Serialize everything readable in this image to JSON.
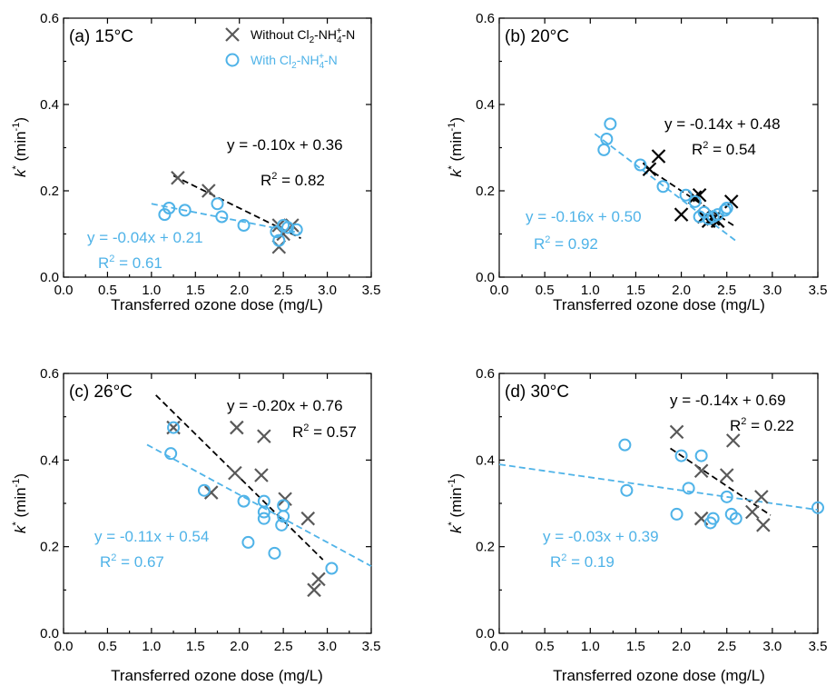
{
  "colors": {
    "without": "#595959",
    "without_dark": "#000000",
    "with": "#4fb3e8"
  },
  "legend": {
    "without_label": "Without Cl₂-NH₄⁺-N",
    "with_label": "With Cl₂-NH₄⁺-N"
  },
  "chart_data": [
    {
      "type": "scatter",
      "panel_label": "(a) 15°C",
      "xlabel": "Transferred ozone dose (mg/L)",
      "ylabel": "k* (min⁻¹)",
      "xlim": [
        0,
        3.5
      ],
      "ylim": [
        0,
        0.6
      ],
      "xticks": [
        "0.0",
        "0.5",
        "1.0",
        "1.5",
        "2.0",
        "2.5",
        "3.0",
        "3.5"
      ],
      "yticks": [
        "0.0",
        "0.2",
        "0.4",
        "0.6"
      ],
      "legend": "top-center",
      "series": [
        {
          "name": "Without Cl₂-NH₄⁺-N",
          "marker": "x",
          "points": [
            [
              1.3,
              0.23
            ],
            [
              1.65,
              0.2
            ],
            [
              2.45,
              0.12
            ],
            [
              2.5,
              0.1
            ],
            [
              2.45,
              0.07
            ],
            [
              2.6,
              0.12
            ]
          ]
        },
        {
          "name": "With Cl₂-NH₄⁺-N",
          "marker": "o",
          "points": [
            [
              1.15,
              0.145
            ],
            [
              1.2,
              0.16
            ],
            [
              1.38,
              0.155
            ],
            [
              1.75,
              0.17
            ],
            [
              1.8,
              0.14
            ],
            [
              2.05,
              0.12
            ],
            [
              2.42,
              0.105
            ],
            [
              2.45,
              0.085
            ],
            [
              2.5,
              0.12
            ],
            [
              2.55,
              0.115
            ],
            [
              2.65,
              0.11
            ]
          ]
        }
      ],
      "fits": [
        {
          "series": "without",
          "x": [
            1.25,
            2.7
          ],
          "eq": "y = -0.10x + 0.36",
          "r2": "R² = 0.82"
        },
        {
          "series": "with",
          "x": [
            1.0,
            2.7
          ],
          "eq": "y = -0.04x + 0.21",
          "r2": "R² = 0.61"
        }
      ]
    },
    {
      "type": "scatter",
      "panel_label": "(b) 20°C",
      "xlabel": "Transferred ozone dose (mg/L)",
      "ylabel": "k* (min⁻¹)",
      "xlim": [
        0,
        3.5
      ],
      "ylim": [
        0,
        0.6
      ],
      "xticks": [
        "0.0",
        "0.5",
        "1.0",
        "1.5",
        "2.0",
        "2.5",
        "3.0",
        "3.5"
      ],
      "yticks": [
        "0.0",
        "0.2",
        "0.4",
        "0.6"
      ],
      "series": [
        {
          "name": "Without Cl₂-NH₄⁺-N",
          "marker": "x",
          "points": [
            [
              1.65,
              0.25
            ],
            [
              1.75,
              0.28
            ],
            [
              2.0,
              0.145
            ],
            [
              2.15,
              0.185
            ],
            [
              2.2,
              0.19
            ],
            [
              2.25,
              0.14
            ],
            [
              2.3,
              0.13
            ],
            [
              2.35,
              0.135
            ],
            [
              2.4,
              0.13
            ],
            [
              2.55,
              0.175
            ]
          ]
        },
        {
          "name": "With Cl₂-NH₄⁺-N",
          "marker": "o",
          "points": [
            [
              1.15,
              0.295
            ],
            [
              1.18,
              0.32
            ],
            [
              1.22,
              0.355
            ],
            [
              1.55,
              0.26
            ],
            [
              1.8,
              0.21
            ],
            [
              2.05,
              0.19
            ],
            [
              2.15,
              0.175
            ],
            [
              2.2,
              0.14
            ],
            [
              2.25,
              0.15
            ],
            [
              2.3,
              0.135
            ],
            [
              2.35,
              0.14
            ],
            [
              2.4,
              0.145
            ],
            [
              2.48,
              0.155
            ],
            [
              2.5,
              0.16
            ]
          ]
        }
      ],
      "fits": [
        {
          "series": "without",
          "x": [
            1.6,
            2.6
          ],
          "eq": "y = -0.14x + 0.48",
          "r2": "R² = 0.54"
        },
        {
          "series": "with",
          "x": [
            1.05,
            2.6
          ],
          "eq": "y = -0.16x + 0.50",
          "r2": "R² = 0.92"
        }
      ]
    },
    {
      "type": "scatter",
      "panel_label": "(c) 26°C",
      "xlabel": "Transferred ozone dose (mg/L)",
      "ylabel": "k* (min⁻¹)",
      "xlim": [
        0,
        3.5
      ],
      "ylim": [
        0,
        0.6
      ],
      "xticks": [
        "0.0",
        "0.5",
        "1.0",
        "1.5",
        "2.0",
        "2.5",
        "3.0",
        "3.5"
      ],
      "yticks": [
        "0.0",
        "0.2",
        "0.4",
        "0.6"
      ],
      "series": [
        {
          "name": "Without Cl₂-NH₄⁺-N",
          "marker": "x",
          "points": [
            [
              1.25,
              0.475
            ],
            [
              1.68,
              0.325
            ],
            [
              1.95,
              0.37
            ],
            [
              1.97,
              0.475
            ],
            [
              2.25,
              0.365
            ],
            [
              2.28,
              0.455
            ],
            [
              2.52,
              0.31
            ],
            [
              2.78,
              0.265
            ],
            [
              2.85,
              0.1
            ],
            [
              2.9,
              0.125
            ]
          ]
        },
        {
          "name": "With Cl₂-NH₄⁺-N",
          "marker": "o",
          "points": [
            [
              1.22,
              0.415
            ],
            [
              1.25,
              0.475
            ],
            [
              1.6,
              0.33
            ],
            [
              2.05,
              0.305
            ],
            [
              2.1,
              0.21
            ],
            [
              2.28,
              0.305
            ],
            [
              2.28,
              0.28
            ],
            [
              2.28,
              0.265
            ],
            [
              2.4,
              0.185
            ],
            [
              2.48,
              0.25
            ],
            [
              2.5,
              0.295
            ],
            [
              2.5,
              0.27
            ],
            [
              3.05,
              0.15
            ]
          ]
        }
      ],
      "fits": [
        {
          "series": "without",
          "x": [
            1.05,
            2.95
          ],
          "eq": "y = -0.20x + 0.76",
          "r2": "R² = 0.57"
        },
        {
          "series": "with",
          "x": [
            0.95,
            3.5
          ],
          "eq": "y = -0.11x + 0.54",
          "r2": "R² = 0.67"
        }
      ]
    },
    {
      "type": "scatter",
      "panel_label": "(d) 30°C",
      "xlabel": "Transferred ozone dose (mg/L)",
      "ylabel": "k* (min⁻¹)",
      "xlim": [
        0,
        3.5
      ],
      "ylim": [
        0,
        0.6
      ],
      "xticks": [
        "0.0",
        "0.5",
        "1.0",
        "1.5",
        "2.0",
        "2.5",
        "3.0",
        "3.5"
      ],
      "yticks": [
        "0.0",
        "0.2",
        "0.4",
        "0.6"
      ],
      "series": [
        {
          "name": "Without Cl₂-NH₄⁺-N",
          "marker": "x",
          "points": [
            [
              1.95,
              0.465
            ],
            [
              2.22,
              0.375
            ],
            [
              2.22,
              0.265
            ],
            [
              2.5,
              0.365
            ],
            [
              2.57,
              0.445
            ],
            [
              2.78,
              0.28
            ],
            [
              2.88,
              0.315
            ],
            [
              2.9,
              0.25
            ]
          ]
        },
        {
          "name": "With Cl₂-NH₄⁺-N",
          "marker": "o",
          "points": [
            [
              1.38,
              0.435
            ],
            [
              1.4,
              0.33
            ],
            [
              1.95,
              0.275
            ],
            [
              2.0,
              0.41
            ],
            [
              2.08,
              0.335
            ],
            [
              2.22,
              0.41
            ],
            [
              2.32,
              0.255
            ],
            [
              2.35,
              0.265
            ],
            [
              2.5,
              0.315
            ],
            [
              2.55,
              0.275
            ],
            [
              2.6,
              0.265
            ],
            [
              3.5,
              0.29
            ]
          ]
        }
      ],
      "fits": [
        {
          "series": "without",
          "x": [
            1.88,
            2.98
          ],
          "eq": "y = -0.14x + 0.69",
          "r2": "R² = 0.22"
        },
        {
          "series": "with",
          "x": [
            0.0,
            3.5
          ],
          "eq": "y = -0.03x + 0.39",
          "r2": "R² = 0.19"
        }
      ]
    }
  ]
}
